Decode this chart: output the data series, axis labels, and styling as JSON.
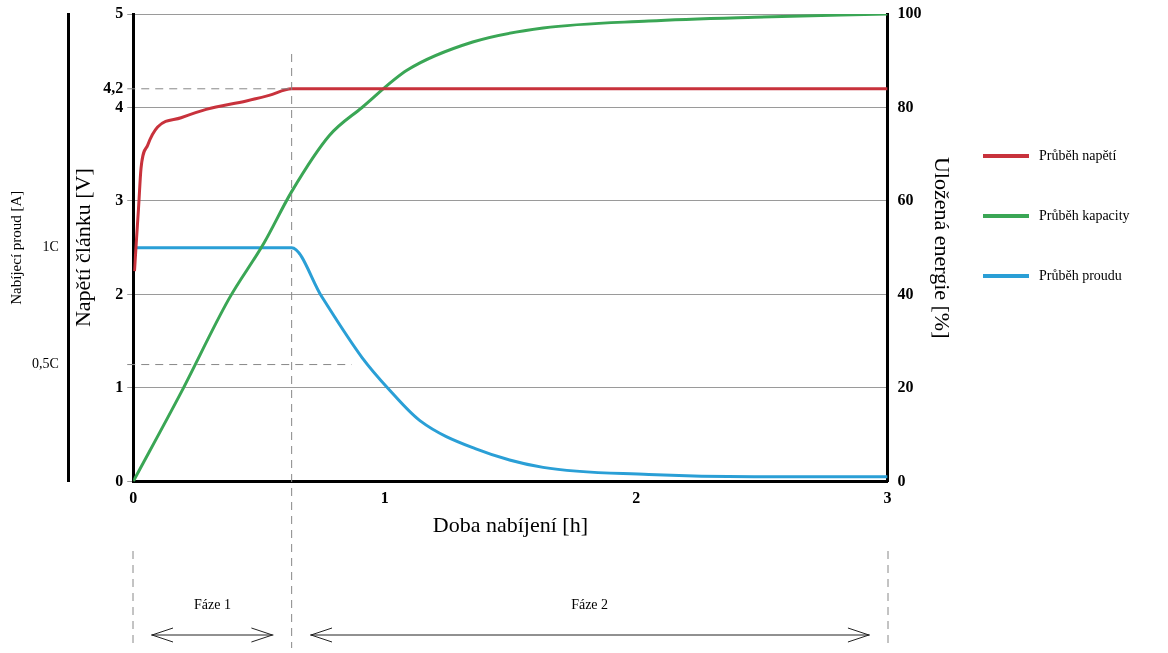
{
  "chart_data": {
    "type": "line",
    "xlabel": "Doba nabíjení [h]",
    "ylabel": "Napětí článku [V]",
    "y2label": "Uložená energie [%]",
    "y3label": "Nabíjecí proud [A]",
    "xlim": [
      0,
      3
    ],
    "xticks": [
      0,
      1,
      2,
      3
    ],
    "ylim": [
      0,
      5
    ],
    "yticks": [
      0,
      1,
      2,
      3,
      4,
      {
        "value": 4.2,
        "label": "4,2"
      },
      5
    ],
    "y2lim": [
      0,
      100
    ],
    "y2ticks": [
      0,
      20,
      40,
      60,
      80,
      100
    ],
    "y3lim": [
      0,
      2
    ],
    "y3ticks": [
      {
        "value": 0.5,
        "label": "0,5C"
      },
      {
        "value": 1,
        "label": "1C"
      }
    ],
    "grid": "y",
    "legend": "right",
    "marker": "none",
    "series": [
      {
        "name": "Průběh napětí",
        "color": "#c8323c",
        "axis": "y",
        "x": [
          0.005,
          0.012,
          0.021,
          0.031,
          0.058,
          0.097,
          0.19,
          0.29,
          0.45,
          0.54,
          0.63,
          3
        ],
        "values": [
          2.25,
          2.55,
          2.92,
          3.35,
          3.6,
          3.79,
          3.89,
          3.98,
          4.07,
          4.13,
          4.2,
          4.2
        ]
      },
      {
        "name": "Průběh kapacity",
        "color": "#3aa655",
        "axis": "y2",
        "x": [
          0,
          0.19,
          0.38,
          0.52,
          0.63,
          0.78,
          0.91,
          1.09,
          1.35,
          1.63,
          2.05,
          2.47,
          3
        ],
        "values": [
          0,
          19,
          39,
          51,
          62,
          74,
          80,
          88,
          94,
          97,
          98.5,
          99.3,
          100
        ]
      },
      {
        "name": "Průběh proudu",
        "color": "#2a9fd6",
        "axis": "y3",
        "x": [
          0.01,
          0.63,
          0.75,
          0.91,
          1.02,
          1.14,
          1.36,
          1.63,
          2.05,
          2.47,
          3
        ],
        "values": [
          1,
          1,
          0.79,
          0.53,
          0.39,
          0.26,
          0.14,
          0.06,
          0.03,
          0.02,
          0.02
        ]
      }
    ],
    "ref_lines": [
      {
        "axis": "x",
        "value": 0.63,
        "label": null,
        "line_style": "dashed"
      },
      {
        "axis": "y",
        "value": 4.2,
        "label": null,
        "line_style": "dashed"
      },
      {
        "axis": "y3",
        "value": 0.5,
        "label": null,
        "line_style": "dashed"
      }
    ],
    "annotations": [
      "Fáze 1",
      "Fáze 2"
    ]
  }
}
